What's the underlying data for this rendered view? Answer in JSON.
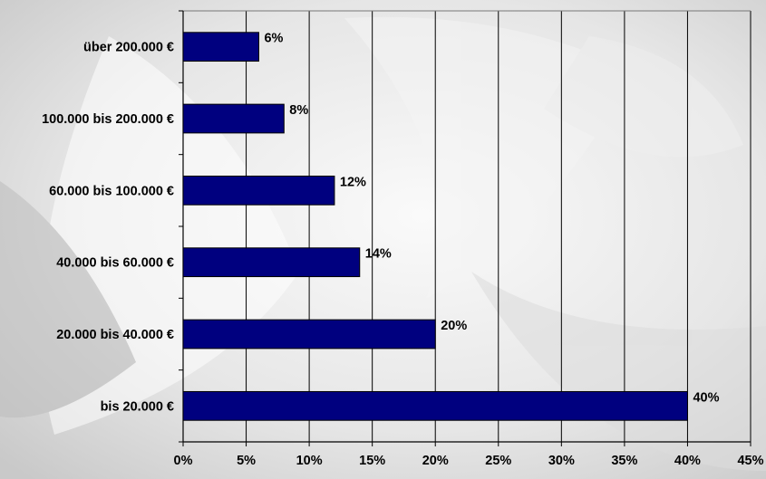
{
  "chart_data": {
    "type": "bar",
    "orientation": "horizontal",
    "categories": [
      "über 200.000 €",
      "100.000 bis 200.000 €",
      "60.000 bis 100.000 €",
      "40.000 bis 60.000 €",
      "20.000 bis 40.000 €",
      "bis 20.000 €"
    ],
    "values": [
      6,
      8,
      12,
      14,
      20,
      40
    ],
    "data_labels": [
      "6%",
      "8%",
      "12%",
      "14%",
      "20%",
      "40%"
    ],
    "x_ticks": [
      "0%",
      "5%",
      "10%",
      "15%",
      "20%",
      "25%",
      "30%",
      "35%",
      "40%",
      "45%"
    ],
    "xlim": [
      0,
      45
    ],
    "grid": "vertical",
    "legend": "none",
    "colors": {
      "bar": "#00007F",
      "grid": "#000000",
      "background": "#e9e9e9"
    }
  }
}
